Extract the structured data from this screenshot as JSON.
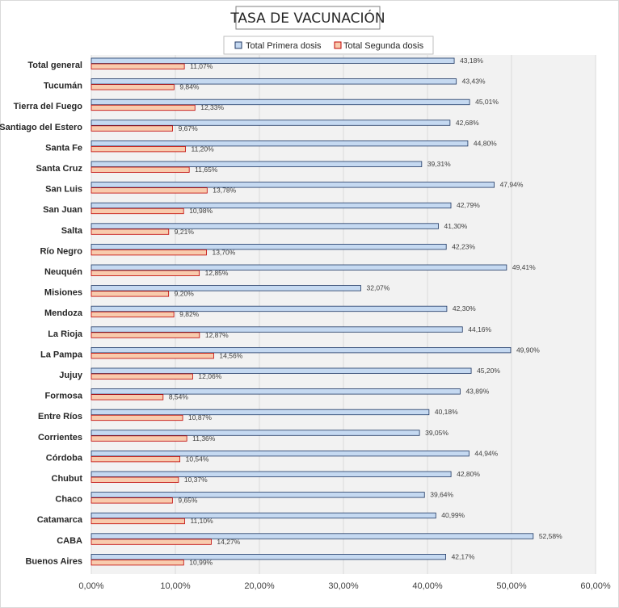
{
  "chart_data": {
    "type": "bar",
    "orientation": "horizontal",
    "title": "TASA DE VACUNACIÓN",
    "categories": [
      "Total general",
      "Tucumán",
      "Tierra del Fuego",
      "Santiago del Estero",
      "Santa Fe",
      "Santa Cruz",
      "San Luis",
      "San Juan",
      "Salta",
      "Río Negro",
      "Neuquén",
      "Misiones",
      "Mendoza",
      "La Rioja",
      "La Pampa",
      "Jujuy",
      "Formosa",
      "Entre Ríos",
      "Corrientes",
      "Córdoba",
      "Chubut",
      "Chaco",
      "Catamarca",
      "CABA",
      "Buenos Aires"
    ],
    "series": [
      {
        "name": "Total Primera dosis",
        "color": "#c5d9f1",
        "border": "#1f3864",
        "values": [
          43.18,
          43.43,
          45.01,
          42.68,
          44.8,
          39.31,
          47.94,
          42.79,
          41.3,
          42.23,
          49.41,
          32.07,
          42.3,
          44.16,
          49.9,
          45.2,
          43.89,
          40.18,
          39.05,
          44.94,
          42.8,
          39.64,
          40.99,
          52.58,
          42.17
        ],
        "labels": [
          "43,18%",
          "43,43%",
          "45,01%",
          "42,68%",
          "44,80%",
          "39,31%",
          "47,94%",
          "42,79%",
          "41,30%",
          "42,23%",
          "49,41%",
          "32,07%",
          "42,30%",
          "44,16%",
          "49,90%",
          "45,20%",
          "43,89%",
          "40,18%",
          "39,05%",
          "44,94%",
          "42,80%",
          "39,64%",
          "40,99%",
          "52,58%",
          "42,17%"
        ]
      },
      {
        "name": "Total Segunda dosis",
        "color": "#f8cbad",
        "border": "#c00000",
        "values": [
          11.07,
          9.84,
          12.33,
          9.67,
          11.2,
          11.65,
          13.78,
          10.98,
          9.21,
          13.7,
          12.85,
          9.2,
          9.82,
          12.87,
          14.56,
          12.06,
          8.54,
          10.87,
          11.36,
          10.54,
          10.37,
          9.65,
          11.1,
          14.27,
          10.99
        ],
        "labels": [
          "11,07%",
          "9,84%",
          "12,33%",
          "9,67%",
          "11,20%",
          "11,65%",
          "13,78%",
          "10,98%",
          "9,21%",
          "13,70%",
          "12,85%",
          "9,20%",
          "9,82%",
          "12,87%",
          "14,56%",
          "12,06%",
          "8,54%",
          "10,87%",
          "11,36%",
          "10,54%",
          "10,37%",
          "9,65%",
          "11,10%",
          "14,27%",
          "10,99%"
        ]
      }
    ],
    "xlim": [
      0,
      60
    ],
    "ticks": [
      0,
      10,
      20,
      30,
      40,
      50,
      60
    ],
    "tick_labels": [
      "0,00%",
      "10,00%",
      "20,00%",
      "30,00%",
      "40,00%",
      "50,00%",
      "60,00%"
    ],
    "legend_position": "top",
    "grid": true,
    "plot_background": "#f2f2f2"
  }
}
